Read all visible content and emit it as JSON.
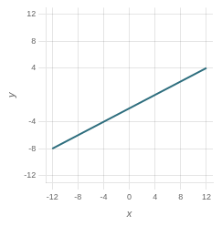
{
  "chart_data": {
    "type": "line",
    "x": [
      -12,
      12
    ],
    "values": [
      -8,
      4
    ],
    "color": "#2e6e7e",
    "xlabel": "x",
    "ylabel": "y",
    "xlim": [
      -13,
      13
    ],
    "ylim": [
      -13,
      13
    ],
    "xticks": [
      -12,
      -8,
      -4,
      0,
      4,
      8,
      12
    ],
    "yticks": [
      -12,
      -8,
      -4,
      4,
      8,
      12
    ],
    "grid": true
  }
}
